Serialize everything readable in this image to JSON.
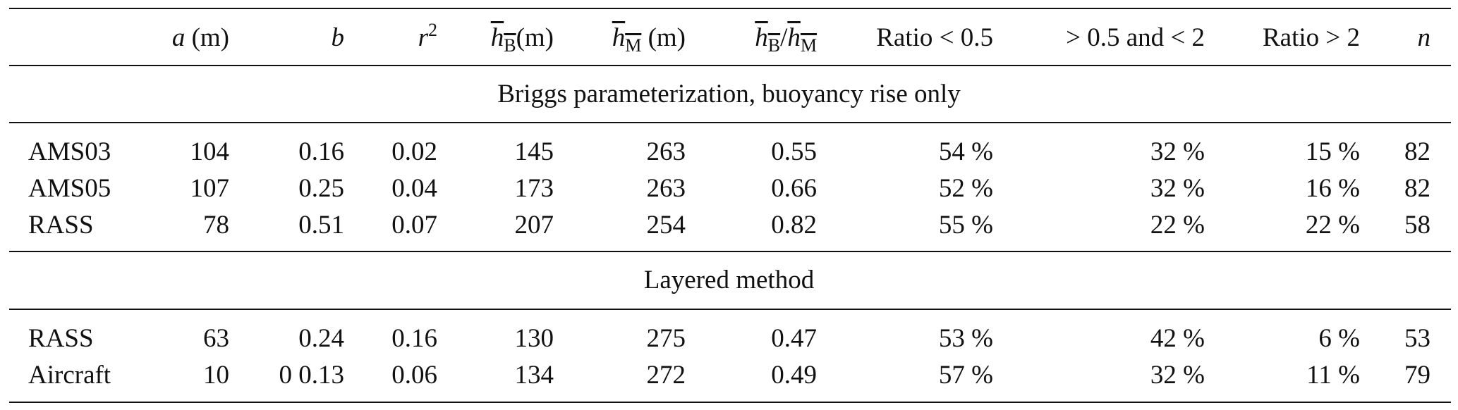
{
  "header": {
    "col_name": "",
    "col_a_sym": "a",
    "col_a_unit": " (m)",
    "col_b_sym": "b",
    "col_r2_sym": "r",
    "col_r2_exp": "2",
    "col_hb_sym": "h",
    "col_hb_sub": "B",
    "col_hb_unit": "(m)",
    "col_hm_sym": "h",
    "col_hm_sub": "M",
    "col_hm_unit": " (m)",
    "col_ratio_num_sym": "h",
    "col_ratio_num_sub": "B",
    "col_ratio_slash": "/",
    "col_ratio_den_sym": "h",
    "col_ratio_den_sub": "M",
    "col_ratio_lt": "Ratio < 0.5",
    "col_ratio_mid": "> 0.5 and < 2",
    "col_ratio_gt": "Ratio > 2",
    "col_n_sym": "n"
  },
  "sections": [
    {
      "title": "Briggs parameterization, buoyancy rise only",
      "rows": [
        {
          "name": "AMS03",
          "a": "104",
          "b": "0.16",
          "r2": "0.02",
          "hb": "145",
          "hm": "263",
          "ratio": "0.55",
          "lt": "54 %",
          "mid": "32 %",
          "gt": "15 %",
          "n": "82"
        },
        {
          "name": "AMS05",
          "a": "107",
          "b": "0.25",
          "r2": "0.04",
          "hb": "173",
          "hm": "263",
          "ratio": "0.66",
          "lt": "52 %",
          "mid": "32 %",
          "gt": "16 %",
          "n": "82"
        },
        {
          "name": "RASS",
          "a": "78",
          "b": "0.51",
          "r2": "0.07",
          "hb": "207",
          "hm": "254",
          "ratio": "0.82",
          "lt": "55 %",
          "mid": "22 %",
          "gt": "22 %",
          "n": "58"
        }
      ]
    },
    {
      "title": "Layered method",
      "rows": [
        {
          "name": "RASS",
          "a": "63",
          "b": "0.24",
          "r2": "0.16",
          "hb": "130",
          "hm": "275",
          "ratio": "0.47",
          "lt": "53 %",
          "mid": "42 %",
          "gt": "6 %",
          "n": "53"
        },
        {
          "name": "Aircraft",
          "a": "10",
          "b": "0 0.13",
          "r2": "0.06",
          "hb": "134",
          "hm": "272",
          "ratio": "0.49",
          "lt": "57 %",
          "mid": "32 %",
          "gt": "11 %",
          "n": "79"
        }
      ]
    }
  ]
}
